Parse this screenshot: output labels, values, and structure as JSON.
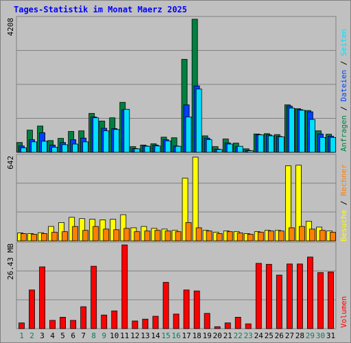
{
  "title": "Tages-Statistik im Monat Maerz 2025",
  "colors": {
    "background": "#c0c0c0",
    "panel_border": "#808080",
    "gridline": "#808080",
    "title": "#0000ff",
    "hits": "#008040",
    "files": "#0040ff",
    "pages": "#00e0ff",
    "visits": "#ffff00",
    "sites": "#ff8000",
    "kbytes": "#ff0000",
    "weekday_label": "#000000",
    "weekend_label": "#00805c"
  },
  "right_legend": {
    "top": {
      "parts": [
        "Anfragen",
        "Dateien",
        "Seiten"
      ],
      "separator": " / "
    },
    "middle": {
      "parts": [
        "Besuche",
        "Rechner"
      ],
      "separator": " / "
    },
    "bottom": {
      "parts": [
        "Volumen"
      ]
    }
  },
  "chart_data": [
    {
      "type": "bar",
      "panel": "top",
      "y_max_label": "4208",
      "ylim": [
        0,
        4208
      ],
      "grid": true,
      "series": [
        {
          "name": "Anfragen",
          "color_key": "hits",
          "values": [
            310,
            700,
            830,
            370,
            440,
            660,
            680,
            1230,
            990,
            1090,
            1580,
            180,
            230,
            270,
            480,
            460,
            2940,
            4208,
            520,
            180,
            420,
            290,
            110,
            580,
            590,
            560,
            1500,
            1380,
            1320,
            680,
            570
          ]
        },
        {
          "name": "Dateien",
          "color_key": "files",
          "values": [
            200,
            400,
            620,
            230,
            310,
            400,
            450,
            1120,
            760,
            750,
            1340,
            120,
            200,
            230,
            400,
            200,
            1500,
            2100,
            450,
            100,
            300,
            180,
            60,
            560,
            550,
            500,
            1460,
            1350,
            1280,
            580,
            510
          ]
        },
        {
          "name": "Seiten",
          "color_key": "pages",
          "values": [
            140,
            330,
            350,
            160,
            240,
            260,
            330,
            1090,
            680,
            720,
            1360,
            110,
            190,
            200,
            360,
            190,
            1120,
            2000,
            400,
            90,
            260,
            190,
            50,
            550,
            520,
            490,
            1400,
            1330,
            1040,
            470,
            470
          ]
        }
      ]
    },
    {
      "type": "bar",
      "panel": "middle",
      "y_max_label": "642",
      "ylim": [
        0,
        642
      ],
      "grid": true,
      "series": [
        {
          "name": "Besuche",
          "color_key": "visits",
          "values": [
            60,
            55,
            62,
            110,
            140,
            180,
            170,
            165,
            160,
            165,
            200,
            100,
            110,
            95,
            90,
            80,
            480,
            642,
            80,
            65,
            75,
            70,
            55,
            70,
            80,
            80,
            575,
            580,
            150,
            105,
            75
          ]
        },
        {
          "name": "Rechner",
          "color_key": "sites",
          "values": [
            55,
            50,
            55,
            65,
            70,
            110,
            80,
            110,
            90,
            85,
            95,
            70,
            75,
            80,
            75,
            70,
            140,
            100,
            75,
            55,
            70,
            60,
            50,
            65,
            75,
            75,
            100,
            110,
            90,
            80,
            65
          ]
        }
      ]
    },
    {
      "type": "bar",
      "panel": "bottom",
      "y_max_label": "26.43 MB",
      "ylim": [
        0,
        26.43
      ],
      "grid": true,
      "series": [
        {
          "name": "Volumen",
          "color_key": "kbytes",
          "values": [
            1.8,
            12.2,
            19.5,
            2.6,
            3.6,
            2.6,
            6.9,
            19.7,
            4.3,
            5.6,
            26.43,
            2.4,
            3.0,
            3.9,
            14.6,
            4.6,
            12.2,
            11.9,
            4.8,
            0.6,
            1.8,
            3.6,
            1.5,
            20.6,
            20.3,
            16.9,
            20.4,
            20.4,
            22.6,
            17.7,
            17.9
          ]
        }
      ]
    }
  ],
  "x_axis": {
    "labels": [
      "1",
      "2",
      "3",
      "4",
      "5",
      "6",
      "7",
      "8",
      "9",
      "10",
      "11",
      "12",
      "13",
      "14",
      "15",
      "16",
      "17",
      "18",
      "19",
      "20",
      "21",
      "22",
      "23",
      "24",
      "25",
      "26",
      "27",
      "28",
      "29",
      "30",
      "31"
    ],
    "weekend_days": [
      "1",
      "2",
      "8",
      "9",
      "15",
      "16",
      "22",
      "23",
      "29",
      "30"
    ]
  }
}
